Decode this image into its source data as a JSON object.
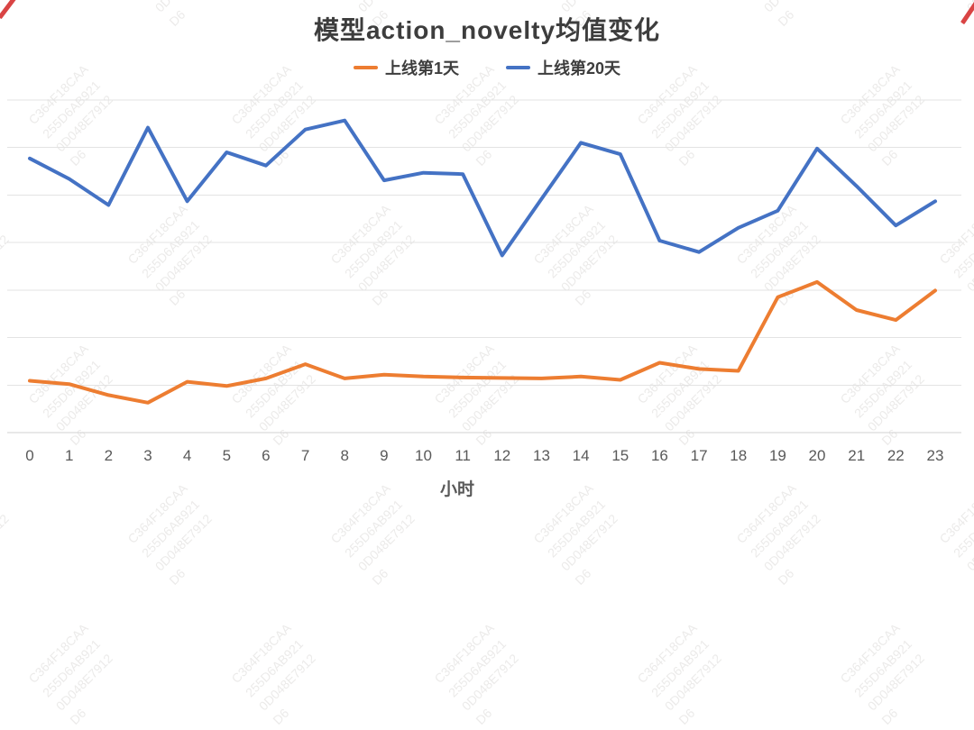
{
  "chart_data": {
    "type": "line",
    "title": "模型action_novelty均值变化",
    "xlabel": "小时",
    "ylabel": "",
    "categories": [
      0,
      1,
      2,
      3,
      4,
      5,
      6,
      7,
      8,
      9,
      10,
      11,
      12,
      13,
      14,
      15,
      16,
      17,
      18,
      19,
      20,
      21,
      22,
      23
    ],
    "series": [
      {
        "name": "上线第1天",
        "color": "#ED7D31",
        "values": [
          0.109,
          0.102,
          0.079,
          0.063,
          0.107,
          0.098,
          0.114,
          0.144,
          0.114,
          0.122,
          0.118,
          0.116,
          0.115,
          0.114,
          0.118,
          0.111,
          0.147,
          0.134,
          0.13,
          0.285,
          0.317,
          0.258,
          0.237,
          0.299
        ]
      },
      {
        "name": "上线第20天",
        "color": "#4472C4",
        "values": [
          0.577,
          0.534,
          0.479,
          0.642,
          0.487,
          0.59,
          0.562,
          0.638,
          0.657,
          0.531,
          0.547,
          0.544,
          0.373,
          0.492,
          0.61,
          0.586,
          0.404,
          0.38,
          0.431,
          0.467,
          0.598,
          0.519,
          0.436,
          0.487
        ]
      }
    ],
    "ylim": [
      0,
      0.7
    ],
    "gridline_step": 0.1,
    "grid": true,
    "legend_position": "top",
    "y_axis_labels_visible": false
  },
  "style": {
    "grid_color": "#e3e3e3",
    "axis_color": "#d2d2d2",
    "tick_color": "#595959",
    "title_color": "#3d3d3d"
  },
  "watermark": {
    "lines": [
      "C364F18CAA",
      "255D6AB921",
      "0D048E7912",
      "D6"
    ]
  }
}
